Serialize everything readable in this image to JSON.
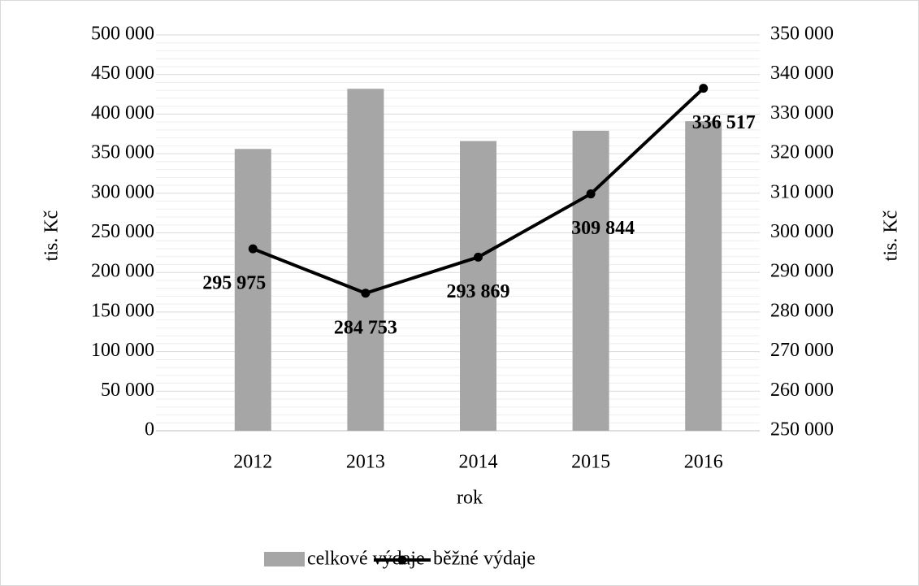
{
  "chart_data": {
    "type": "bar-line",
    "categories": [
      "2012",
      "2013",
      "2014",
      "2015",
      "2016"
    ],
    "series": [
      {
        "name": "celkové výdaje",
        "color": "#a6a6a6",
        "type": "bar",
        "values": [
          356000,
          432000,
          366000,
          379000,
          391000
        ]
      },
      {
        "name": "běžné výdaje",
        "color": "#000000",
        "type": "line",
        "axis": "y2",
        "values": [
          295975,
          284753,
          293869,
          309844,
          336517
        ],
        "value_labels": [
          "295 975",
          "284 753",
          "293 869",
          "309 844",
          "336 517"
        ]
      }
    ],
    "xlabel": "rok",
    "ylabel": "tis. Kč",
    "y2label": "tis. Kč",
    "ylim": [
      0,
      500000
    ],
    "yticks": [
      0,
      {
        "value": 50000,
        "label": "50 000"
      },
      {
        "value": 100000,
        "label": "100 000"
      },
      {
        "value": 150000,
        "label": "150 000"
      },
      {
        "value": 200000,
        "label": "200 000"
      },
      {
        "value": 250000,
        "label": "250 000"
      },
      {
        "value": 300000,
        "label": "300 000"
      },
      {
        "value": 350000,
        "label": "350 000"
      },
      {
        "value": 400000,
        "label": "400 000"
      },
      {
        "value": 450000,
        "label": "450 000"
      },
      {
        "value": 500000,
        "label": "500 000"
      }
    ],
    "y2lim": [
      250000,
      350000
    ],
    "y2ticks": [
      {
        "value": 250000,
        "label": "250 000"
      },
      {
        "value": 260000,
        "label": "260 000"
      },
      {
        "value": 270000,
        "label": "270 000"
      },
      {
        "value": 280000,
        "label": "280 000"
      },
      {
        "value": 290000,
        "label": "290 000"
      },
      {
        "value": 300000,
        "label": "300 000"
      },
      {
        "value": 310000,
        "label": "310 000"
      },
      {
        "value": 320000,
        "label": "320 000"
      },
      {
        "value": 330000,
        "label": "330 000"
      },
      {
        "value": 340000,
        "label": "340 000"
      },
      {
        "value": 350000,
        "label": "350 000"
      }
    ],
    "grid": true,
    "legend": "bottom"
  }
}
